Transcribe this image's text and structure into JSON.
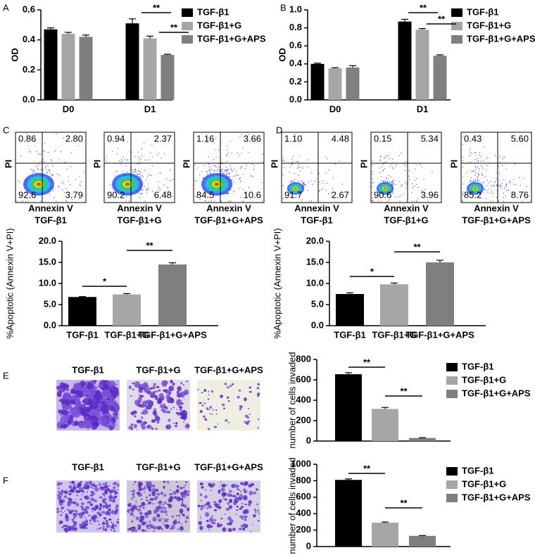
{
  "chart_data": [
    {
      "type": "bar",
      "panel": "A",
      "y_label": "OD",
      "categories": [
        "D0",
        "D1"
      ],
      "series": [
        {
          "name": "TGF-β1",
          "color": "#000000",
          "values": [
            0.47,
            0.51
          ],
          "errors": [
            0.01,
            0.03
          ]
        },
        {
          "name": "TGF-β1+G",
          "color": "#a6a6a6",
          "values": [
            0.44,
            0.41
          ],
          "errors": [
            0.01,
            0.015
          ]
        },
        {
          "name": "TGF-β1+G+APS",
          "color": "#7f7f7f",
          "values": [
            0.42,
            0.3
          ],
          "errors": [
            0.012,
            0.004
          ]
        }
      ],
      "ylim": [
        0,
        0.6
      ],
      "yticks": [
        {
          "value": 0,
          "label": "0.0"
        },
        {
          "value": 0.2,
          "label": "0.2"
        },
        {
          "value": 0.4,
          "label": "0.4"
        },
        {
          "value": 0.6,
          "label": "0.6"
        }
      ],
      "legend": "right",
      "annotations": [
        "**",
        "**"
      ]
    },
    {
      "type": "bar",
      "panel": "B",
      "y_label": "OD",
      "categories": [
        "D0",
        "D1"
      ],
      "series": [
        {
          "name": "TGF-β1",
          "color": "#000000",
          "values": [
            0.4,
            0.87
          ],
          "errors": [
            0.008,
            0.025
          ]
        },
        {
          "name": "TGF-β1+G",
          "color": "#a6a6a6",
          "values": [
            0.35,
            0.78
          ],
          "errors": [
            0.008,
            0.012
          ]
        },
        {
          "name": "TGF-β1+G+APS",
          "color": "#7f7f7f",
          "values": [
            0.36,
            0.49
          ],
          "errors": [
            0.02,
            0.01
          ]
        }
      ],
      "ylim": [
        0,
        1.0
      ],
      "yticks": [
        {
          "value": 0,
          "label": "0.0"
        },
        {
          "value": 0.2,
          "label": "0.2"
        },
        {
          "value": 0.4,
          "label": "0.4"
        },
        {
          "value": 0.6,
          "label": "0.6"
        },
        {
          "value": 0.8,
          "label": "0.8"
        },
        {
          "value": 1.0,
          "label": "1.0"
        }
      ],
      "legend": "right",
      "annotations": [
        "**",
        "**"
      ]
    },
    {
      "type": "bar",
      "y_label": "%Apoptotic (Annexin V+PI)",
      "categories": [
        "TGF-β1",
        "TGF-β1+G",
        "TGF-β1+G+APS"
      ],
      "values": [
        6.8,
        7.4,
        14.5
      ],
      "errors": [
        0.1,
        0.2,
        0.4
      ],
      "colors": [
        "#000000",
        "#a6a6a6",
        "#7f7f7f"
      ],
      "ylim": [
        0,
        20
      ],
      "yticks": [
        {
          "value": 0,
          "label": "0.0"
        },
        {
          "value": 5,
          "label": "5.0"
        },
        {
          "value": 10,
          "label": "10.0"
        },
        {
          "value": 15,
          "label": "15.0"
        },
        {
          "value": 20,
          "label": "20.0"
        }
      ],
      "annotations": [
        "*",
        "**"
      ]
    },
    {
      "type": "bar",
      "y_label": "%Apoptotic (Annexin V+PI)",
      "categories": [
        "TGF-β1",
        "TGF-β1+G",
        "TGF-β1+G+APS"
      ],
      "values": [
        7.5,
        9.8,
        15.0
      ],
      "errors": [
        0.3,
        0.3,
        0.5
      ],
      "colors": [
        "#000000",
        "#a6a6a6",
        "#7f7f7f"
      ],
      "ylim": [
        0,
        20
      ],
      "yticks": [
        {
          "value": 0,
          "label": "0.0"
        },
        {
          "value": 5,
          "label": "5.0"
        },
        {
          "value": 10,
          "label": "10.0"
        },
        {
          "value": 15,
          "label": "15.0"
        },
        {
          "value": 20,
          "label": "20.0"
        }
      ],
      "annotations": [
        "*",
        "**"
      ]
    },
    {
      "type": "bar",
      "y_label": "number of cells invaded",
      "categories": [
        "TGF-β1",
        "TGF-β1+G",
        "TGF-β1+G+APS"
      ],
      "values": [
        655,
        315,
        30
      ],
      "errors": [
        15,
        15,
        3
      ],
      "colors": [
        "#000000",
        "#a6a6a6",
        "#7f7f7f"
      ],
      "ylim": [
        0,
        800
      ],
      "yticks": [
        0,
        200,
        400,
        600,
        800
      ],
      "legend": "right",
      "annotations": [
        "**",
        "**"
      ]
    },
    {
      "type": "bar",
      "y_label": "number of cells invaded",
      "categories": [
        "TGF-β1",
        "TGF-β1+G",
        "TGF-β1+G+APS"
      ],
      "values": [
        810,
        290,
        130
      ],
      "errors": [
        12,
        8,
        4
      ],
      "colors": [
        "#000000",
        "#a6a6a6",
        "#7f7f7f"
      ],
      "ylim": [
        0,
        1000
      ],
      "yticks": [
        0,
        200,
        400,
        600,
        800,
        1000
      ],
      "legend": "right",
      "annotations": [
        "**",
        "**"
      ]
    }
  ],
  "flow_panels": [
    {
      "panel": "C",
      "x_label": "Annexin V",
      "y_label": "PI",
      "plots": [
        {
          "name": "TGF-β1",
          "quadrants": [
            "0.86",
            "2.80",
            "92.6",
            "3.79"
          ]
        },
        {
          "name": "TGF-β1+G",
          "quadrants": [
            "0.94",
            "2.37",
            "90.2",
            "6.48"
          ]
        },
        {
          "name": "TGF-β1+G+APS",
          "quadrants": [
            "1.16",
            "3.66",
            "84.5",
            "10.6"
          ]
        }
      ]
    },
    {
      "panel": "D",
      "x_label": "Annexin V",
      "y_label": "PI",
      "plots": [
        {
          "name": "TGF-β1",
          "quadrants": [
            "1.10",
            "4.48",
            "91.7",
            "2.67"
          ]
        },
        {
          "name": "TGF-β1+G",
          "quadrants": [
            "0.15",
            "5.34",
            "90.6",
            "3.96"
          ]
        },
        {
          "name": "TGF-β1+G+APS",
          "quadrants": [
            "0.43",
            "5.60",
            "85.2",
            "8.76"
          ]
        }
      ]
    }
  ],
  "image_panels": [
    {
      "panel": "E",
      "titles": [
        "TGF-β1",
        "TGF-β1+G",
        "TGF-β1+G+APS"
      ]
    },
    {
      "panel": "F",
      "titles": [
        "TGF-β1",
        "TGF-β1+G",
        "TGF-β1+G+APS"
      ]
    }
  ]
}
